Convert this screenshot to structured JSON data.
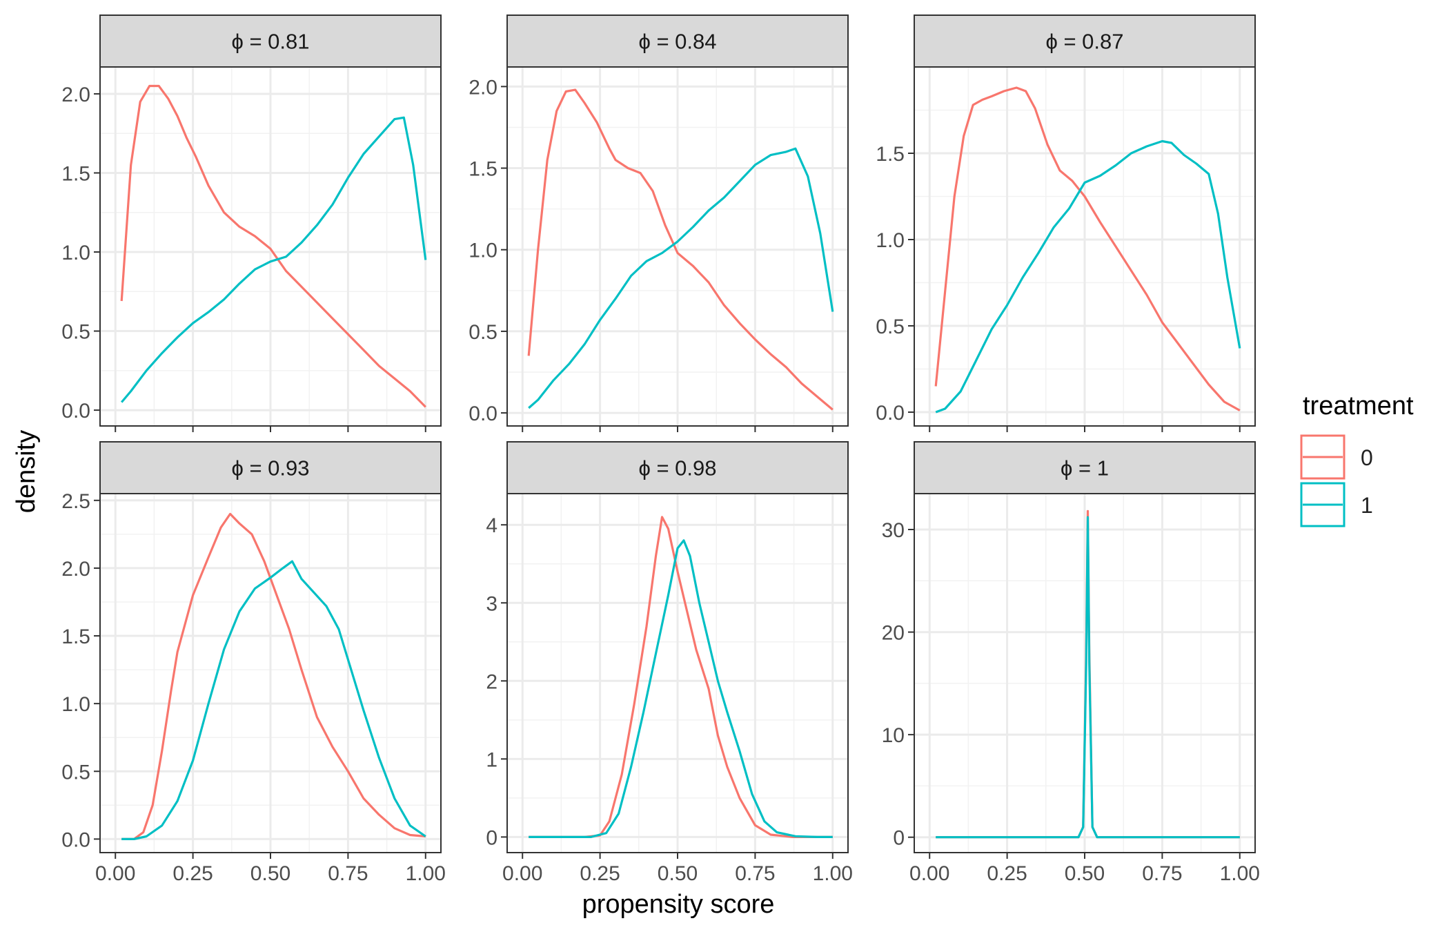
{
  "chart_data": {
    "type": "line",
    "subtype": "density",
    "xlabel": "propensity score",
    "ylabel": "density",
    "legend": {
      "title": "treatment",
      "position": "right",
      "entries": [
        {
          "label": "0",
          "color": "#F8766D"
        },
        {
          "label": "1",
          "color": "#00BFC4"
        }
      ]
    },
    "x_range": [
      0,
      1
    ],
    "x_ticks": [
      0,
      0.25,
      0.5,
      0.75,
      1.0
    ],
    "x_tick_labels": [
      "0.00",
      "0.25",
      "0.50",
      "0.75",
      "1.00"
    ],
    "panels": [
      {
        "strip": "ϕ = 0.81",
        "ylim": [
          -0.1,
          2.17
        ],
        "y_ticks": [
          0,
          0.5,
          1.0,
          1.5,
          2.0
        ],
        "y_tick_labels": [
          "0.0",
          "0.5",
          "1.0",
          "1.5",
          "2.0"
        ],
        "series": [
          {
            "name": "0",
            "x": [
              0.02,
              0.05,
              0.08,
              0.11,
              0.14,
              0.17,
              0.2,
              0.23,
              0.26,
              0.3,
              0.35,
              0.4,
              0.45,
              0.5,
              0.55,
              0.6,
              0.65,
              0.7,
              0.75,
              0.8,
              0.85,
              0.9,
              0.95,
              1.0
            ],
            "y": [
              0.69,
              1.55,
              1.95,
              2.05,
              2.05,
              1.97,
              1.86,
              1.72,
              1.6,
              1.42,
              1.25,
              1.16,
              1.1,
              1.02,
              0.88,
              0.78,
              0.68,
              0.58,
              0.48,
              0.38,
              0.28,
              0.2,
              0.12,
              0.02
            ]
          },
          {
            "name": "1",
            "x": [
              0.02,
              0.05,
              0.1,
              0.15,
              0.2,
              0.25,
              0.3,
              0.35,
              0.4,
              0.45,
              0.5,
              0.55,
              0.6,
              0.65,
              0.7,
              0.75,
              0.8,
              0.85,
              0.9,
              0.93,
              0.96,
              1.0
            ],
            "y": [
              0.05,
              0.12,
              0.25,
              0.36,
              0.46,
              0.55,
              0.62,
              0.7,
              0.8,
              0.89,
              0.94,
              0.97,
              1.06,
              1.17,
              1.3,
              1.47,
              1.62,
              1.73,
              1.84,
              1.85,
              1.55,
              0.95
            ]
          }
        ]
      },
      {
        "strip": "ϕ = 0.84",
        "ylim": [
          -0.08,
          2.12
        ],
        "y_ticks": [
          0,
          0.5,
          1.0,
          1.5,
          2.0
        ],
        "y_tick_labels": [
          "0.0",
          "0.5",
          "1.0",
          "1.5",
          "2.0"
        ],
        "series": [
          {
            "name": "0",
            "x": [
              0.02,
              0.05,
              0.08,
              0.11,
              0.14,
              0.17,
              0.2,
              0.24,
              0.28,
              0.3,
              0.34,
              0.38,
              0.42,
              0.46,
              0.5,
              0.55,
              0.6,
              0.65,
              0.7,
              0.75,
              0.8,
              0.85,
              0.9,
              0.95,
              1.0
            ],
            "y": [
              0.35,
              1.0,
              1.55,
              1.85,
              1.97,
              1.98,
              1.9,
              1.78,
              1.62,
              1.55,
              1.5,
              1.47,
              1.36,
              1.15,
              0.98,
              0.9,
              0.8,
              0.66,
              0.55,
              0.45,
              0.36,
              0.28,
              0.18,
              0.1,
              0.02
            ]
          },
          {
            "name": "1",
            "x": [
              0.02,
              0.05,
              0.1,
              0.15,
              0.2,
              0.25,
              0.3,
              0.35,
              0.4,
              0.45,
              0.5,
              0.55,
              0.6,
              0.65,
              0.7,
              0.75,
              0.8,
              0.85,
              0.88,
              0.92,
              0.96,
              1.0
            ],
            "y": [
              0.03,
              0.08,
              0.2,
              0.3,
              0.42,
              0.57,
              0.7,
              0.84,
              0.93,
              0.98,
              1.05,
              1.14,
              1.24,
              1.32,
              1.42,
              1.52,
              1.58,
              1.6,
              1.62,
              1.45,
              1.1,
              0.62
            ]
          }
        ]
      },
      {
        "strip": "ϕ = 0.87",
        "ylim": [
          -0.08,
          2.0
        ],
        "y_ticks": [
          0,
          0.5,
          1.0,
          1.5
        ],
        "y_tick_labels": [
          "0.0",
          "0.5",
          "1.0",
          "1.5"
        ],
        "series": [
          {
            "name": "0",
            "x": [
              0.02,
              0.05,
              0.08,
              0.11,
              0.14,
              0.17,
              0.2,
              0.24,
              0.28,
              0.31,
              0.34,
              0.38,
              0.42,
              0.46,
              0.5,
              0.55,
              0.6,
              0.65,
              0.7,
              0.75,
              0.8,
              0.85,
              0.9,
              0.95,
              1.0
            ],
            "y": [
              0.15,
              0.7,
              1.25,
              1.6,
              1.78,
              1.81,
              1.83,
              1.86,
              1.88,
              1.86,
              1.76,
              1.55,
              1.4,
              1.34,
              1.25,
              1.1,
              0.96,
              0.82,
              0.68,
              0.52,
              0.4,
              0.28,
              0.16,
              0.06,
              0.01
            ]
          },
          {
            "name": "1",
            "x": [
              0.02,
              0.05,
              0.1,
              0.15,
              0.2,
              0.25,
              0.3,
              0.35,
              0.4,
              0.45,
              0.5,
              0.55,
              0.6,
              0.65,
              0.7,
              0.75,
              0.78,
              0.82,
              0.86,
              0.9,
              0.93,
              0.96,
              1.0
            ],
            "y": [
              0.0,
              0.02,
              0.12,
              0.3,
              0.48,
              0.62,
              0.78,
              0.92,
              1.07,
              1.18,
              1.33,
              1.37,
              1.43,
              1.5,
              1.54,
              1.57,
              1.56,
              1.49,
              1.44,
              1.38,
              1.15,
              0.78,
              0.37
            ]
          }
        ]
      },
      {
        "strip": "ϕ = 0.93",
        "ylim": [
          -0.1,
          2.55
        ],
        "y_ticks": [
          0,
          0.5,
          1.0,
          1.5,
          2.0,
          2.5
        ],
        "y_tick_labels": [
          "0.0",
          "0.5",
          "1.0",
          "1.5",
          "2.0",
          "2.5"
        ],
        "series": [
          {
            "name": "0",
            "x": [
              0.02,
              0.06,
              0.09,
              0.12,
              0.15,
              0.18,
              0.2,
              0.25,
              0.3,
              0.34,
              0.37,
              0.4,
              0.44,
              0.48,
              0.52,
              0.56,
              0.6,
              0.65,
              0.7,
              0.75,
              0.8,
              0.85,
              0.9,
              0.95,
              1.0
            ],
            "y": [
              0.0,
              0.0,
              0.05,
              0.25,
              0.65,
              1.1,
              1.38,
              1.8,
              2.08,
              2.3,
              2.4,
              2.33,
              2.25,
              2.05,
              1.8,
              1.55,
              1.25,
              0.9,
              0.68,
              0.5,
              0.3,
              0.18,
              0.08,
              0.03,
              0.02
            ]
          },
          {
            "name": "1",
            "x": [
              0.02,
              0.06,
              0.1,
              0.15,
              0.2,
              0.25,
              0.3,
              0.35,
              0.4,
              0.45,
              0.5,
              0.54,
              0.57,
              0.6,
              0.64,
              0.68,
              0.72,
              0.76,
              0.8,
              0.85,
              0.9,
              0.95,
              1.0
            ],
            "y": [
              0.0,
              0.0,
              0.02,
              0.1,
              0.28,
              0.58,
              1.0,
              1.4,
              1.68,
              1.85,
              1.93,
              2.0,
              2.05,
              1.92,
              1.82,
              1.72,
              1.55,
              1.25,
              0.95,
              0.6,
              0.3,
              0.1,
              0.02
            ]
          }
        ]
      },
      {
        "strip": "ϕ = 0.98",
        "ylim": [
          -0.2,
          4.4
        ],
        "y_ticks": [
          0,
          1,
          2,
          3,
          4
        ],
        "y_tick_labels": [
          "0",
          "1",
          "2",
          "3",
          "4"
        ],
        "series": [
          {
            "name": "0",
            "x": [
              0.02,
              0.2,
              0.25,
              0.28,
              0.32,
              0.36,
              0.4,
              0.43,
              0.45,
              0.47,
              0.5,
              0.53,
              0.56,
              0.6,
              0.63,
              0.66,
              0.7,
              0.75,
              0.8,
              0.87,
              0.95,
              1.0
            ],
            "y": [
              0,
              0,
              0.02,
              0.2,
              0.8,
              1.7,
              2.7,
              3.6,
              4.1,
              3.95,
              3.4,
              2.9,
              2.4,
              1.9,
              1.3,
              0.9,
              0.5,
              0.15,
              0.03,
              0,
              0,
              0
            ]
          },
          {
            "name": "1",
            "x": [
              0.02,
              0.22,
              0.27,
              0.31,
              0.35,
              0.39,
              0.43,
              0.47,
              0.5,
              0.52,
              0.54,
              0.57,
              0.6,
              0.63,
              0.66,
              0.7,
              0.74,
              0.78,
              0.82,
              0.88,
              0.95,
              1.0
            ],
            "y": [
              0,
              0,
              0.05,
              0.3,
              0.9,
              1.6,
              2.35,
              3.1,
              3.7,
              3.8,
              3.6,
              3.0,
              2.5,
              2.0,
              1.6,
              1.1,
              0.55,
              0.2,
              0.06,
              0.01,
              0,
              0
            ]
          }
        ]
      },
      {
        "strip": "ϕ = 1",
        "ylim": [
          -1.5,
          33.5
        ],
        "y_ticks": [
          0,
          10,
          20,
          30
        ],
        "y_tick_labels": [
          "0",
          "10",
          "20",
          "30"
        ],
        "series": [
          {
            "name": "0",
            "x": [
              0.02,
              0.48,
              0.495,
              0.505,
              0.51,
              0.515,
              0.525,
              0.54,
              0.56,
              1.0
            ],
            "y": [
              0,
              0,
              1,
              18,
              31.8,
              18,
              1,
              0,
              0,
              0
            ]
          },
          {
            "name": "1",
            "x": [
              0.02,
              0.48,
              0.495,
              0.505,
              0.51,
              0.515,
              0.525,
              0.54,
              0.56,
              1.0
            ],
            "y": [
              0,
              0,
              1,
              17,
              31.2,
              17,
              1,
              0,
              0,
              0
            ]
          }
        ]
      }
    ]
  }
}
